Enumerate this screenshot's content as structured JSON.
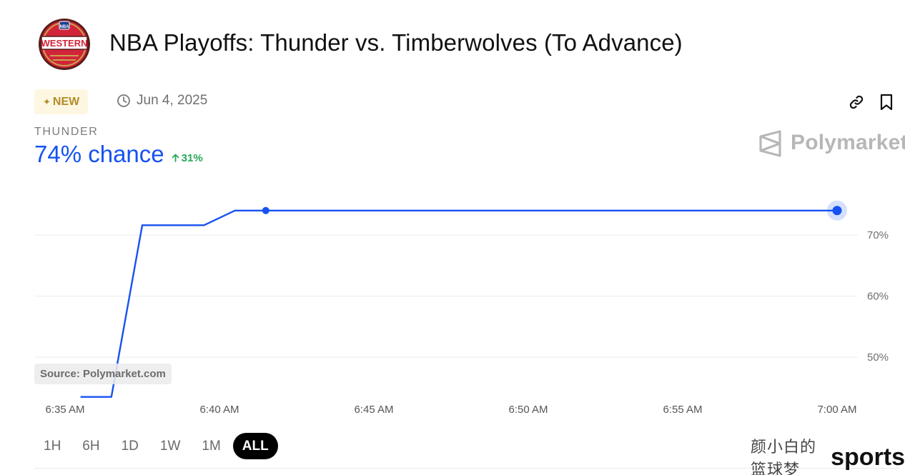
{
  "header": {
    "logo_text_top": "NBA",
    "logo_text_main": "WESTERN",
    "title": "NBA Playoffs: Thunder vs. Timberwolves (To Advance)"
  },
  "meta": {
    "new_label": "NEW",
    "date": "Jun 4, 2025"
  },
  "outcome": {
    "name": "THUNDER",
    "chance_text": "74% chance",
    "change_text": "31%",
    "change_direction": "up"
  },
  "brand": {
    "name": "Polymarket"
  },
  "source": "Source: Polymarket.com",
  "ranges": [
    {
      "label": "1H",
      "active": false
    },
    {
      "label": "6H",
      "active": false
    },
    {
      "label": "1D",
      "active": false
    },
    {
      "label": "1W",
      "active": false
    },
    {
      "label": "1M",
      "active": false
    },
    {
      "label": "ALL",
      "active": true
    }
  ],
  "watermark": {
    "chinese": "颜小白的篮球梦",
    "english": "sports"
  },
  "colors": {
    "accent_blue": "#1652f0",
    "positive_green": "#27a857",
    "new_gold": "#b38b2a",
    "logo_red": "#d1243a",
    "logo_gold": "#c8a24a"
  },
  "icons": [
    "new-sparkle-icon",
    "clock-icon",
    "link-icon",
    "bookmark-icon",
    "polymarket-logo-icon",
    "arrow-up-icon"
  ],
  "chart_data": {
    "type": "line",
    "title": "",
    "xlabel": "",
    "ylabel": "",
    "x_tick_labels": [
      "6:35 AM",
      "6:40 AM",
      "6:45 AM",
      "6:50 AM",
      "6:55 AM",
      "7:00 AM"
    ],
    "y_tick_labels": [
      "70%",
      "60%",
      "50%"
    ],
    "y_ticks": [
      70,
      60,
      50
    ],
    "xlim_minutes": [
      0,
      25
    ],
    "ylim": [
      43,
      79
    ],
    "grid": true,
    "series": [
      {
        "name": "",
        "color": "#1652f0",
        "x_minutes_after_6_35": [
          0.5,
          1.5,
          2.5,
          4.5,
          5.5,
          6.5,
          25
        ],
        "y": [
          43.5,
          43.5,
          71.6,
          71.6,
          74,
          74,
          74
        ]
      }
    ],
    "marker_small_at_minute": 6.5,
    "marker_end_at_minute": 25
  }
}
